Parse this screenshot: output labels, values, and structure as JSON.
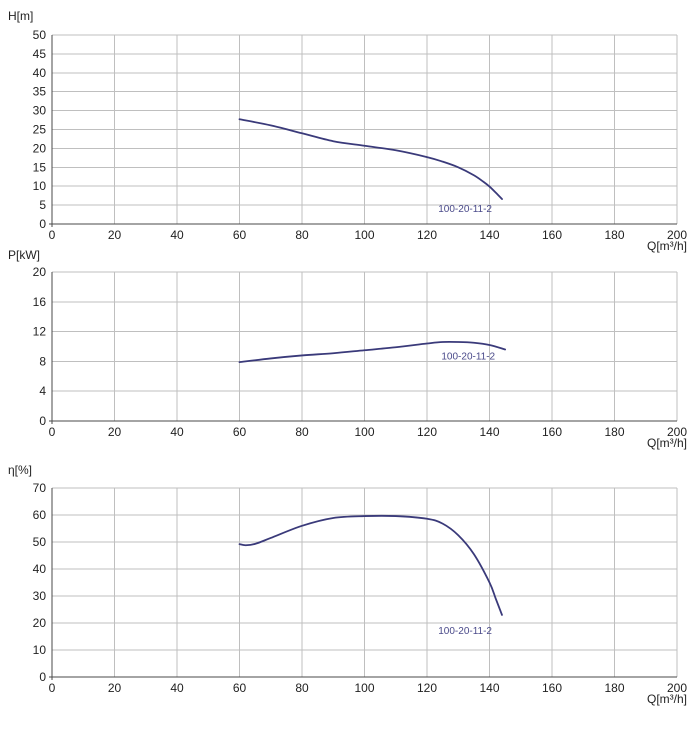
{
  "colors": {
    "grid": "#bfbfbf",
    "axis": "#4a4a4a",
    "text": "#222222",
    "curve": "#3a3a7a",
    "curve_label": "#4a4a8a"
  },
  "chart_data": [
    {
      "type": "line",
      "ylabel": "H[m]",
      "xlabel": "Q[m³/h]",
      "xlim": [
        0,
        200
      ],
      "ylim": [
        0,
        50
      ],
      "xticks": [
        0,
        20,
        40,
        60,
        80,
        100,
        120,
        140,
        160,
        180,
        200
      ],
      "yticks": [
        0,
        5,
        10,
        15,
        20,
        25,
        30,
        35,
        40,
        45,
        50
      ],
      "grid": true,
      "series": [
        {
          "name": "100-20-11-2",
          "x": [
            60,
            70,
            80,
            90,
            100,
            110,
            120,
            125,
            130,
            135,
            138,
            140,
            142,
            144
          ],
          "y": [
            27.7,
            26.1,
            24.0,
            21.9,
            20.7,
            19.5,
            17.7,
            16.5,
            15.0,
            12.9,
            11.2,
            9.9,
            8.3,
            6.6
          ]
        }
      ]
    },
    {
      "type": "line",
      "ylabel": "P[kW]",
      "xlabel": "Q[m³/h]",
      "xlim": [
        0,
        200
      ],
      "ylim": [
        0,
        20
      ],
      "xticks": [
        0,
        20,
        40,
        60,
        80,
        100,
        120,
        140,
        160,
        180,
        200
      ],
      "yticks": [
        0,
        4,
        8,
        12,
        16,
        20
      ],
      "grid": true,
      "series": [
        {
          "name": "100-20-11-2",
          "x": [
            60,
            70,
            80,
            90,
            100,
            110,
            120,
            125,
            130,
            135,
            140,
            145
          ],
          "y": [
            7.9,
            8.4,
            8.8,
            9.1,
            9.5,
            9.9,
            10.4,
            10.6,
            10.6,
            10.5,
            10.2,
            9.6
          ]
        }
      ]
    },
    {
      "type": "line",
      "ylabel": "η[%]",
      "xlabel": "Q[m³/h]",
      "xlim": [
        0,
        200
      ],
      "ylim": [
        0,
        70
      ],
      "xticks": [
        0,
        20,
        40,
        60,
        80,
        100,
        120,
        140,
        160,
        180,
        200
      ],
      "yticks": [
        0,
        10,
        20,
        30,
        40,
        50,
        60,
        70
      ],
      "grid": true,
      "series": [
        {
          "name": "100-20-11-2",
          "x": [
            60,
            62,
            65,
            70,
            80,
            90,
            100,
            110,
            120,
            125,
            130,
            135,
            140,
            142,
            144
          ],
          "y": [
            49.2,
            48.8,
            49.3,
            51.5,
            56.0,
            58.9,
            59.6,
            59.6,
            58.6,
            56.8,
            52.5,
            45.5,
            35.0,
            29.0,
            23.0
          ]
        }
      ]
    }
  ]
}
